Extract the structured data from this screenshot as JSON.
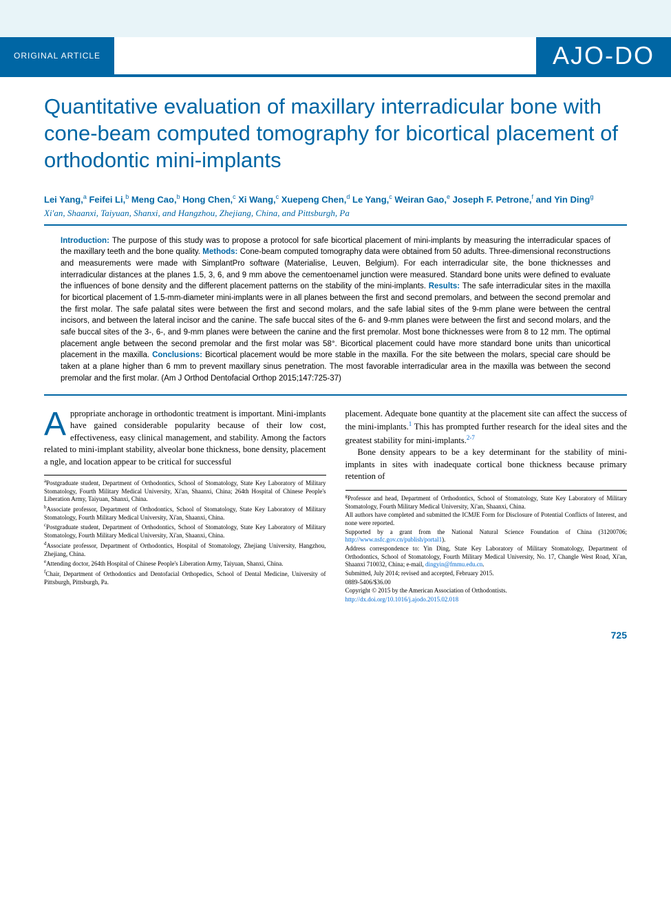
{
  "colors": {
    "brand_blue": "#0066a4",
    "header_bg": "#e8f4f8",
    "link_blue": "#0066cc",
    "text": "#000000",
    "white": "#ffffff"
  },
  "header": {
    "article_type": "ORIGINAL ARTICLE",
    "journal_logo": "AJO-DO"
  },
  "title": "Quantitative evaluation of maxillary interradicular bone with cone-beam computed tomography for bicortical placement of orthodontic mini-implants",
  "authors_html": "Lei Yang,<sup>a</sup> Feifei Li,<sup>b</sup> Meng Cao,<sup>b</sup> Hong Chen,<sup>c</sup> Xi Wang,<sup>c</sup> Xuepeng Chen,<sup>d</sup> Le Yang,<sup>c</sup> Weiran Gao,<sup>e</sup> Joseph F. Petrone,<sup>f</sup> and Yin Ding<sup>g</sup>",
  "author_locations": "Xi'an, Shaanxi, Taiyuan, Shanxi, and Hangzhou, Zhejiang, China, and Pittsburgh, Pa",
  "abstract": {
    "sections": [
      {
        "label": "Introduction:",
        "text": "The purpose of this study was to propose a protocol for safe bicortical placement of mini-implants by measuring the interradicular spaces of the maxillary teeth and the bone quality."
      },
      {
        "label": "Methods:",
        "text": "Cone-beam computed tomography data were obtained from 50 adults. Three-dimensional reconstructions and measurements were made with SimplantPro software (Materialise, Leuven, Belgium). For each interradicular site, the bone thicknesses and interradicular distances at the planes 1.5, 3, 6, and 9 mm above the cementoenamel junction were measured. Standard bone units were defined to evaluate the influences of bone density and the different placement patterns on the stability of the mini-implants."
      },
      {
        "label": "Results:",
        "text": "The safe interradicular sites in the maxilla for bicortical placement of 1.5-mm-diameter mini-implants were in all planes between the first and second premolars, and between the second premolar and the first molar. The safe palatal sites were between the first and second molars, and the safe labial sites of the 9-mm plane were between the central incisors, and between the lateral incisor and the canine. The safe buccal sites of the 6- and 9-mm planes were between the first and second molars, and the safe buccal sites of the 3-, 6-, and 9-mm planes were between the canine and the first premolar. Most bone thicknesses were from 8 to 12 mm. The optimal placement angle between the second premolar and the first molar was 58°. Bicortical placement could have more standard bone units than unicortical placement in the maxilla."
      },
      {
        "label": "Conclusions:",
        "text": "Bicortical placement would be more stable in the maxilla. For the site between the molars, special care should be taken at a plane higher than 6 mm to prevent maxillary sinus penetration. The most favorable interradicular area in the maxilla was between the second premolar and the first molar. (Am J Orthod Dentofacial Orthop 2015;147:725-37)"
      }
    ]
  },
  "body": {
    "col1": {
      "dropcap": "A",
      "p1": "ppropriate anchorage in orthodontic treatment is important. Mini-implants have gained considerable popularity because of their low cost, effectiveness, easy clinical management, and stability. Among the factors related to mini-implant stability, alveolar bone thickness, bone density, placement a ngle, and location appear to be critical for successful"
    },
    "col2": {
      "p1_pre": "placement. Adequate bone quantity at the placement site can affect the success of the mini-implants.",
      "ref1": "1",
      "p1_post": " This has prompted further research for the ideal sites and the greatest stability for mini-implants.",
      "ref2": "2-7",
      "p2": "Bone density appears to be a key determinant for the stability of mini-implants in sites with inadequate cortical bone thickness because primary retention of"
    }
  },
  "footnotes_left": [
    "<sup>a</sup>Postgraduate student, Department of Orthodontics, School of Stomatology, State Key Laboratory of Military Stomatology, Fourth Military Medical University, Xi'an, Shaanxi, China; 264th Hospital of Chinese People's Liberation Army, Taiyuan, Shanxi, China.",
    "<sup>b</sup>Associate professor, Department of Orthodontics, School of Stomatology, State Key Laboratory of Military Stomatology, Fourth Military Medical University, Xi'an, Shaanxi, China.",
    "<sup>c</sup>Postgraduate student, Department of Orthodontics, School of Stomatology, State Key Laboratory of Military Stomatology, Fourth Military Medical University, Xi'an, Shaanxi, China.",
    "<sup>d</sup>Associate professor, Department of Orthodontics, Hospital of Stomatology, Zhejiang University, Hangzhou, Zhejiang, China.",
    "<sup>e</sup>Attending doctor, 264th Hospital of Chinese People's Liberation Army, Taiyuan, Shanxi, China.",
    "<sup>f</sup>Chair, Department of Orthodontics and Dentofacial Orthopedics, School of Dental Medicine, University of Pittsburgh, Pittsburgh, Pa."
  ],
  "footnotes_right": [
    "<sup>g</sup>Professor and head, Department of Orthodontics, School of Stomatology, State Key Laboratory of Military Stomatology, Fourth Military Medical University, Xi'an, Shaanxi, China.",
    "All authors have completed and submitted the ICMJE Form for Disclosure of Potential Conflicts of Interest, and none were reported.",
    "Supported by a grant from the National Natural Science Foundation of China (31200706; <a href=\"#\">http://www.nsfc.gov.cn/publish/portal1</a>).",
    "Address correspondence to: Yin Ding, State Key Laboratory of Military Stomatology, Department of Orthodontics, School of Stomatology, Fourth Military Medical University, No. 17, Changle West Road, Xi'an, Shaanxi 710032, China; e-mail, <a href=\"#\">dingyin@fmmu.edu.cn</a>.",
    "Submitted, July 2014; revised and accepted, February 2015.",
    "0889-5406/$36.00",
    "Copyright © 2015 by the American Association of Orthodontists.",
    "<a href=\"#\">http://dx.doi.org/10.1016/j.ajodo.2015.02.018</a>"
  ],
  "page_number": "725"
}
